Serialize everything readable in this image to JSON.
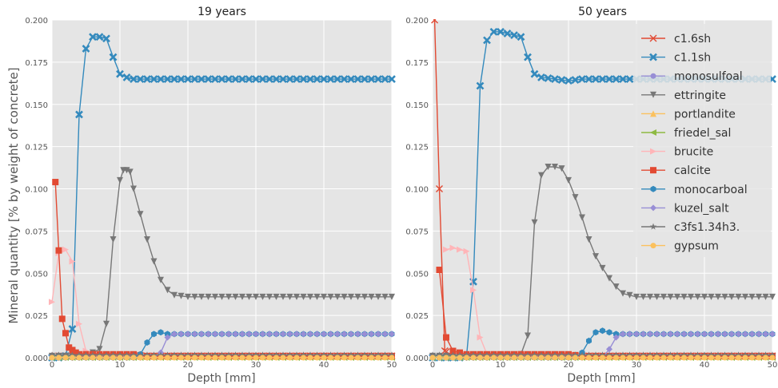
{
  "figure": {
    "ylabel": "Mineral quantity [% by weight of concrete]",
    "xlabel": "Depth [mm]"
  },
  "chart_data": [
    {
      "type": "line",
      "title": "19 years",
      "xlabel": "Depth [mm]",
      "ylabel": "Mineral quantity [% by weight of concrete]",
      "xlim": [
        0,
        50
      ],
      "ylim": [
        0,
        0.2
      ],
      "xticks": [
        "0",
        "10",
        "20",
        "30",
        "40",
        "50"
      ],
      "yticks": [
        "0.000",
        "0.025",
        "0.050",
        "0.075",
        "0.100",
        "0.125",
        "0.150",
        "0.175",
        "0.200"
      ],
      "grid": true,
      "series": [
        {
          "name": "c1.6sh",
          "color": "#E24A33",
          "marker": "x",
          "points": [
            [
              0.5,
              0.001
            ],
            [
              50,
              0.001
            ]
          ]
        },
        {
          "name": "c1.1sh",
          "color": "#348ABD",
          "marker": "X",
          "points": [
            [
              0,
              0
            ],
            [
              1,
              0
            ],
            [
              2,
              0.001
            ],
            [
              3,
              0.017
            ],
            [
              4,
              0.144
            ],
            [
              5,
              0.183
            ],
            [
              6,
              0.19
            ],
            [
              7,
              0.19
            ],
            [
              8,
              0.189
            ],
            [
              9,
              0.178
            ],
            [
              10,
              0.168
            ],
            [
              11,
              0.166
            ],
            [
              12,
              0.165
            ],
            [
              14,
              0.165
            ],
            [
              16,
              0.165
            ],
            [
              18,
              0.165
            ],
            [
              20,
              0.165
            ],
            [
              25,
              0.165
            ],
            [
              30,
              0.165
            ],
            [
              35,
              0.165
            ],
            [
              40,
              0.165
            ],
            [
              45,
              0.165
            ],
            [
              50,
              0.165
            ]
          ]
        },
        {
          "name": "monosulfoal",
          "color": "#988ED5",
          "marker": "o",
          "points": [
            [
              0,
              0.001
            ],
            [
              50,
              0.001
            ]
          ]
        },
        {
          "name": "ettringite",
          "color": "#777777",
          "marker": "v",
          "points": [
            [
              0,
              0.001
            ],
            [
              4,
              0.001
            ],
            [
              5,
              0.002
            ],
            [
              6,
              0.003
            ],
            [
              7,
              0.005
            ],
            [
              8,
              0.02
            ],
            [
              9,
              0.07
            ],
            [
              10,
              0.105
            ],
            [
              10.5,
              0.111
            ],
            [
              11,
              0.111
            ],
            [
              11.5,
              0.11
            ],
            [
              12,
              0.1
            ],
            [
              13,
              0.085
            ],
            [
              14,
              0.07
            ],
            [
              15,
              0.057
            ],
            [
              16,
              0.046
            ],
            [
              17,
              0.04
            ],
            [
              18,
              0.037
            ],
            [
              20,
              0.036
            ],
            [
              25,
              0.036
            ],
            [
              30,
              0.036
            ],
            [
              35,
              0.036
            ],
            [
              40,
              0.036
            ],
            [
              45,
              0.036
            ],
            [
              50,
              0.036
            ]
          ]
        },
        {
          "name": "portlandite",
          "color": "#FBC15E",
          "marker": "^",
          "points": [
            [
              0,
              0.0005
            ],
            [
              50,
              0.0005
            ]
          ]
        },
        {
          "name": "friedel_sal",
          "color": "#8EBA42",
          "marker": "<",
          "points": [
            [
              0,
              0
            ],
            [
              50,
              0
            ]
          ]
        },
        {
          "name": "brucite",
          "color": "#FFB5B8",
          "marker": ">",
          "points": [
            [
              0,
              0.033
            ],
            [
              1,
              0.062
            ],
            [
              2,
              0.064
            ],
            [
              3,
              0.057
            ],
            [
              4,
              0.02
            ],
            [
              5,
              0.004
            ],
            [
              6,
              0.001
            ],
            [
              50,
              0.001
            ]
          ]
        },
        {
          "name": "calcite",
          "color": "#E24A33",
          "marker": "s",
          "points": [
            [
              0.5,
              0.104
            ],
            [
              1.5,
              0.023
            ],
            [
              2.5,
              0.006
            ],
            [
              3.5,
              0.003
            ],
            [
              4,
              0.002
            ],
            [
              6,
              0.002
            ],
            [
              8,
              0.002
            ],
            [
              10,
              0.002
            ],
            [
              12,
              0.002
            ],
            [
              14,
              0.001
            ],
            [
              16,
              0.001
            ],
            [
              20,
              0.001
            ],
            [
              30,
              0.001
            ],
            [
              40,
              0.001
            ],
            [
              50,
              0.001
            ]
          ]
        },
        {
          "name": "monocarboal",
          "color": "#348ABD",
          "marker": "h",
          "points": [
            [
              0,
              0
            ],
            [
              12,
              0
            ],
            [
              13,
              0.002
            ],
            [
              14,
              0.009
            ],
            [
              15,
              0.014
            ],
            [
              16,
              0.015
            ],
            [
              17,
              0.014
            ],
            [
              18,
              0.014
            ],
            [
              20,
              0.014
            ],
            [
              25,
              0.014
            ],
            [
              30,
              0.014
            ],
            [
              35,
              0.014
            ],
            [
              40,
              0.014
            ],
            [
              45,
              0.014
            ],
            [
              50,
              0.014
            ]
          ]
        },
        {
          "name": "kuzel_salt",
          "color": "#988ED5",
          "marker": "P",
          "points": [
            [
              0,
              0
            ],
            [
              15,
              0
            ],
            [
              16,
              0.003
            ],
            [
              17,
              0.012
            ],
            [
              18,
              0.014
            ],
            [
              20,
              0.014
            ],
            [
              25,
              0.014
            ],
            [
              30,
              0.014
            ],
            [
              35,
              0.014
            ],
            [
              40,
              0.014
            ],
            [
              45,
              0.014
            ],
            [
              50,
              0.014
            ]
          ]
        },
        {
          "name": "c3fs1.34h3.",
          "color": "#777777",
          "marker": "*",
          "points": [
            [
              0,
              0.0015
            ],
            [
              50,
              0.0015
            ]
          ]
        },
        {
          "name": "gypsum",
          "color": "#FBC15E",
          "marker": "o",
          "points": [
            [
              0,
              0
            ],
            [
              50,
              0
            ]
          ]
        }
      ]
    },
    {
      "type": "line",
      "title": "50 years",
      "xlabel": "Depth [mm]",
      "ylabel": "",
      "xlim": [
        0,
        50
      ],
      "ylim": [
        0,
        0.2
      ],
      "xticks": [
        "0",
        "10",
        "20",
        "30",
        "40",
        "50"
      ],
      "yticks": [
        "0.000",
        "0.025",
        "0.050",
        "0.075",
        "0.100",
        "0.125",
        "0.150",
        "0.175",
        "0.200"
      ],
      "grid": true,
      "legend_position": "right",
      "series": [
        {
          "name": "c1.6sh",
          "color": "#E24A33",
          "marker": "x",
          "points": [
            [
              0.3,
              0.2
            ],
            [
              1,
              0.1
            ],
            [
              1.8,
              0.004
            ],
            [
              3,
              0.001
            ],
            [
              50,
              0.001
            ]
          ]
        },
        {
          "name": "c1.1sh",
          "color": "#348ABD",
          "marker": "X",
          "points": [
            [
              0,
              0
            ],
            [
              4,
              0
            ],
            [
              5,
              0.001
            ],
            [
              6,
              0.045
            ],
            [
              7,
              0.161
            ],
            [
              8,
              0.188
            ],
            [
              9,
              0.193
            ],
            [
              10,
              0.193
            ],
            [
              11,
              0.192
            ],
            [
              12,
              0.191
            ],
            [
              13,
              0.19
            ],
            [
              14,
              0.178
            ],
            [
              15,
              0.168
            ],
            [
              16,
              0.166
            ],
            [
              18,
              0.165
            ],
            [
              20,
              0.164
            ],
            [
              22,
              0.165
            ],
            [
              25,
              0.165
            ],
            [
              30,
              0.165
            ],
            [
              35,
              0.165
            ],
            [
              40,
              0.165
            ],
            [
              45,
              0.165
            ],
            [
              50,
              0.165
            ]
          ]
        },
        {
          "name": "monosulfoal",
          "color": "#988ED5",
          "marker": "o",
          "points": [
            [
              0,
              0.001
            ],
            [
              50,
              0.001
            ]
          ]
        },
        {
          "name": "ettringite",
          "color": "#777777",
          "marker": "v",
          "points": [
            [
              0,
              0.001
            ],
            [
              12,
              0.001
            ],
            [
              13,
              0.002
            ],
            [
              14,
              0.013
            ],
            [
              15,
              0.08
            ],
            [
              16,
              0.108
            ],
            [
              17,
              0.113
            ],
            [
              18,
              0.113
            ],
            [
              19,
              0.112
            ],
            [
              20,
              0.105
            ],
            [
              21,
              0.095
            ],
            [
              22,
              0.083
            ],
            [
              23,
              0.07
            ],
            [
              24,
              0.06
            ],
            [
              25,
              0.053
            ],
            [
              26,
              0.047
            ],
            [
              27,
              0.042
            ],
            [
              28,
              0.038
            ],
            [
              29,
              0.037
            ],
            [
              30,
              0.036
            ],
            [
              35,
              0.036
            ],
            [
              40,
              0.036
            ],
            [
              45,
              0.036
            ],
            [
              50,
              0.036
            ]
          ]
        },
        {
          "name": "portlandite",
          "color": "#FBC15E",
          "marker": "^",
          "points": [
            [
              0,
              0.0005
            ],
            [
              50,
              0.0005
            ]
          ]
        },
        {
          "name": "friedel_sal",
          "color": "#8EBA42",
          "marker": "<",
          "points": [
            [
              0,
              0
            ],
            [
              50,
              0
            ]
          ]
        },
        {
          "name": "brucite",
          "color": "#FFB5B8",
          "marker": ">",
          "points": [
            [
              2,
              0.064
            ],
            [
              3,
              0.065
            ],
            [
              4,
              0.064
            ],
            [
              5,
              0.063
            ],
            [
              6,
              0.04
            ],
            [
              7,
              0.012
            ],
            [
              8,
              0.002
            ],
            [
              9,
              0.001
            ],
            [
              50,
              0.001
            ]
          ]
        },
        {
          "name": "calcite",
          "color": "#E24A33",
          "marker": "s",
          "points": [
            [
              1,
              0.052
            ],
            [
              2,
              0.012
            ],
            [
              3,
              0.004
            ],
            [
              4,
              0.003
            ],
            [
              5,
              0.002
            ],
            [
              10,
              0.002
            ],
            [
              15,
              0.002
            ],
            [
              20,
              0.002
            ],
            [
              22,
              0.001
            ],
            [
              30,
              0.001
            ],
            [
              40,
              0.001
            ],
            [
              50,
              0.001
            ]
          ]
        },
        {
          "name": "monocarboal",
          "color": "#348ABD",
          "marker": "h",
          "points": [
            [
              0,
              0
            ],
            [
              21,
              0
            ],
            [
              22,
              0.003
            ],
            [
              23,
              0.01
            ],
            [
              24,
              0.015
            ],
            [
              25,
              0.016
            ],
            [
              26,
              0.015
            ],
            [
              27,
              0.014
            ],
            [
              28,
              0.014
            ],
            [
              30,
              0.014
            ],
            [
              35,
              0.014
            ],
            [
              40,
              0.014
            ],
            [
              45,
              0.014
            ],
            [
              50,
              0.014
            ]
          ]
        },
        {
          "name": "kuzel_salt",
          "color": "#988ED5",
          "marker": "P",
          "points": [
            [
              0,
              0
            ],
            [
              25,
              0
            ],
            [
              26,
              0.005
            ],
            [
              27,
              0.012
            ],
            [
              28,
              0.014
            ],
            [
              30,
              0.014
            ],
            [
              35,
              0.014
            ],
            [
              40,
              0.014
            ],
            [
              45,
              0.014
            ],
            [
              50,
              0.014
            ]
          ]
        },
        {
          "name": "c3fs1.34h3.",
          "color": "#777777",
          "marker": "*",
          "points": [
            [
              0,
              0.0015
            ],
            [
              50,
              0.0015
            ]
          ]
        },
        {
          "name": "gypsum",
          "color": "#FBC15E",
          "marker": "o",
          "points": [
            [
              0,
              0
            ],
            [
              50,
              0
            ]
          ]
        }
      ]
    }
  ]
}
